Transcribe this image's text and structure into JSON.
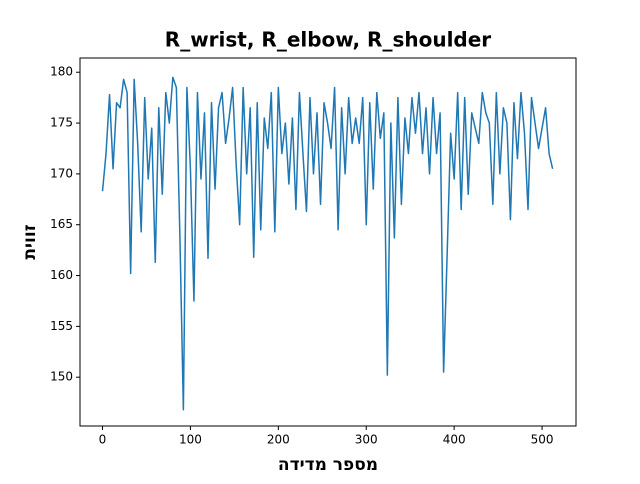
{
  "chart_data": {
    "type": "line",
    "title": "R_wrist, R_elbow, R_shoulder",
    "x_label": "מספר מדידה",
    "y_label": "זווית",
    "x": [
      0,
      4,
      8,
      12,
      16,
      20,
      24,
      28,
      32,
      36,
      40,
      44,
      48,
      52,
      56,
      60,
      64,
      68,
      72,
      76,
      80,
      84,
      88,
      92,
      96,
      100,
      104,
      108,
      112,
      116,
      120,
      124,
      128,
      132,
      136,
      140,
      144,
      148,
      152,
      156,
      160,
      164,
      168,
      172,
      176,
      180,
      184,
      188,
      192,
      196,
      200,
      204,
      208,
      212,
      216,
      220,
      224,
      228,
      232,
      236,
      240,
      244,
      248,
      252,
      256,
      260,
      264,
      268,
      272,
      276,
      280,
      284,
      288,
      292,
      296,
      300,
      304,
      308,
      312,
      316,
      320,
      324,
      328,
      332,
      336,
      340,
      344,
      348,
      352,
      356,
      360,
      364,
      368,
      372,
      376,
      380,
      384,
      388,
      392,
      396,
      400,
      404,
      408,
      412,
      416,
      420,
      424,
      428,
      432,
      436,
      440,
      444,
      448,
      452,
      456,
      460,
      464,
      468,
      472,
      476,
      480,
      484,
      488,
      492,
      496,
      500,
      504,
      508,
      512
    ],
    "values": [
      168.3,
      172,
      177.8,
      170.5,
      177,
      176.5,
      179.3,
      178,
      160.2,
      179.3,
      173,
      164.3,
      177.5,
      169.5,
      174.5,
      161.3,
      176.5,
      168,
      178,
      175,
      179.5,
      178.5,
      164,
      146.8,
      178.5,
      170.5,
      157.5,
      178,
      169.5,
      176,
      161.7,
      177,
      168.5,
      176.5,
      178,
      173,
      175.5,
      178.5,
      171,
      165,
      178.5,
      170,
      176.5,
      161.8,
      177,
      164.5,
      175.5,
      172.5,
      178,
      164.3,
      178.5,
      172,
      175,
      169,
      175.5,
      166.5,
      178,
      172,
      166.3,
      177.5,
      170,
      176,
      167,
      177,
      175,
      172.5,
      178.5,
      164.5,
      176.5,
      170,
      177.5,
      173,
      175.5,
      173,
      177.5,
      165,
      177,
      168.5,
      178,
      173.5,
      176,
      150.2,
      175,
      163.7,
      177.5,
      167,
      175.5,
      172,
      177.5,
      174,
      178,
      172,
      176.5,
      170,
      177.5,
      172,
      176,
      150.5,
      162,
      174,
      169.5,
      178,
      166.5,
      177.5,
      168,
      176,
      174.5,
      173,
      178,
      176,
      175,
      167,
      178,
      170,
      176.5,
      175,
      165.5,
      177,
      171.5,
      178,
      174,
      166.5,
      177.5,
      175,
      172.5,
      174.5,
      176.5,
      172,
      170.5
    ],
    "color": "#1f77b4",
    "xlim": [
      -25.6,
      538.6
    ],
    "xticks": [
      0,
      100,
      200,
      300,
      400,
      500
    ],
    "ylim": [
      145.2,
      181.4
    ],
    "yticks": [
      150,
      155,
      160,
      165,
      170,
      175,
      180
    ]
  }
}
